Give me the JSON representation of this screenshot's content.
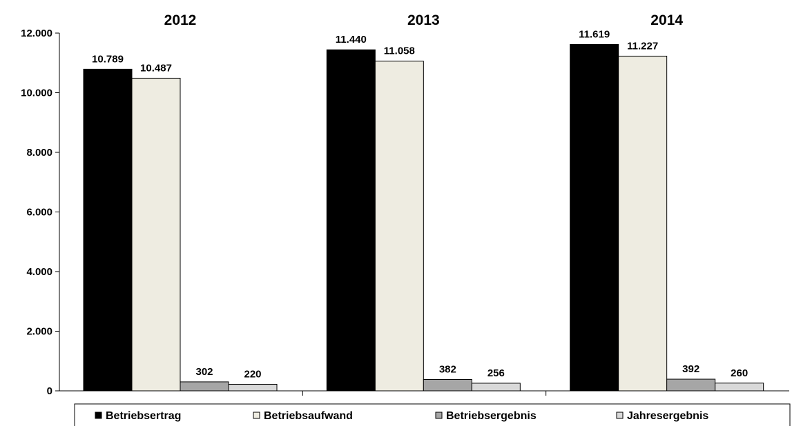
{
  "chart_data": {
    "type": "bar",
    "categories": [
      "2012",
      "2013",
      "2014"
    ],
    "series": [
      {
        "name": "Betriebsertrag",
        "color": "#000000",
        "values": [
          10789,
          11440,
          11619
        ],
        "labels": [
          "10.789",
          "11.440",
          "11.619"
        ]
      },
      {
        "name": "Betriebsaufwand",
        "color": "#EEECE1",
        "values": [
          10487,
          11058,
          11227
        ],
        "labels": [
          "10.487",
          "11.058",
          "11.227"
        ]
      },
      {
        "name": "Betriebsergebnis",
        "color": "#A6A6A6",
        "values": [
          302,
          382,
          392
        ],
        "labels": [
          "302",
          "382",
          "392"
        ]
      },
      {
        "name": "Jahresergebnis",
        "color": "#D9D9D9",
        "values": [
          220,
          256,
          260
        ],
        "labels": [
          "220",
          "256",
          "260"
        ]
      }
    ],
    "ylim": [
      0,
      12000
    ],
    "yticks": [
      0,
      2000,
      4000,
      6000,
      8000,
      10000,
      12000
    ],
    "ytick_labels": [
      "0",
      "2.000",
      "4.000",
      "6.000",
      "8.000",
      "10.000",
      "12.000"
    ],
    "grid": false,
    "legend_position": "bottom"
  }
}
